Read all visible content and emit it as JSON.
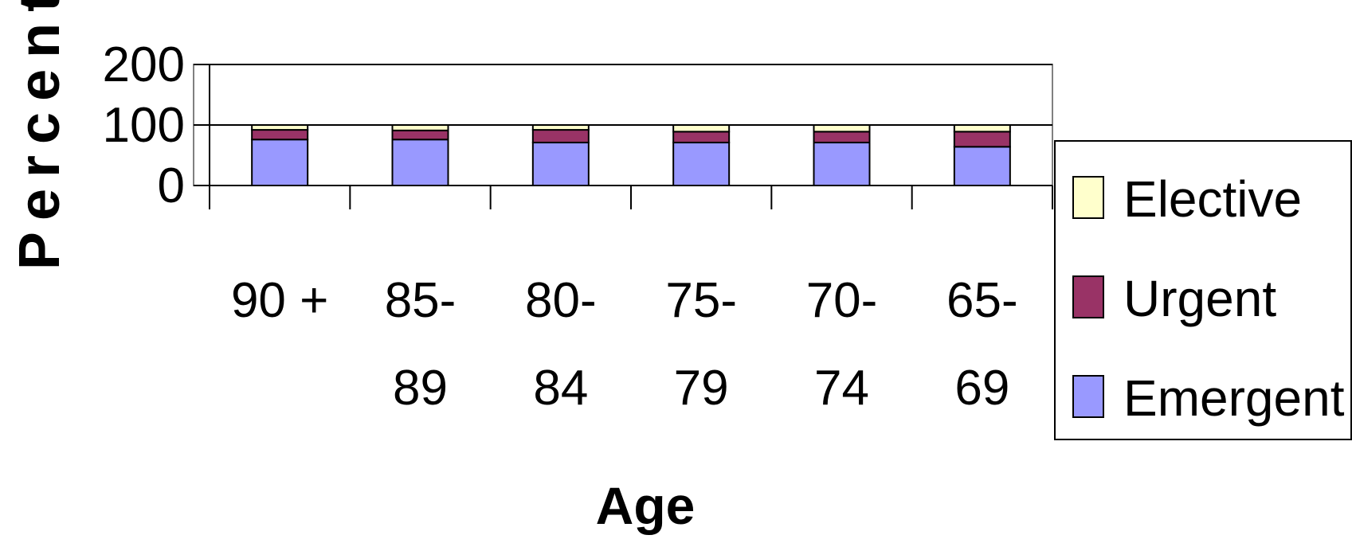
{
  "chart_data": {
    "type": "bar",
    "stacked": true,
    "categories": [
      "90 +",
      "85-89",
      "80-84",
      "75-79",
      "70-74",
      "65-69"
    ],
    "category_lines": [
      [
        "90 +"
      ],
      [
        "85-",
        "89"
      ],
      [
        "80-",
        "84"
      ],
      [
        "75-",
        "79"
      ],
      [
        "70-",
        "74"
      ],
      [
        "65-",
        "69"
      ]
    ],
    "series": [
      {
        "name": "Emergent",
        "values": [
          76,
          76,
          71,
          71,
          71,
          64
        ],
        "color": "#9999ff"
      },
      {
        "name": "Urgent",
        "values": [
          16,
          15,
          21,
          18,
          18,
          25
        ],
        "color": "#993366"
      },
      {
        "name": "Elective",
        "values": [
          8,
          9,
          8,
          11,
          11,
          11
        ],
        "color": "#ffffcc"
      }
    ],
    "legend_order": [
      "Elective",
      "Urgent",
      "Emergent"
    ],
    "xlabel": "Age",
    "ylabel": "Percent",
    "ylim": [
      0,
      200
    ],
    "yticks": [
      0,
      100,
      200
    ],
    "grid": true,
    "legend_position": "right"
  }
}
